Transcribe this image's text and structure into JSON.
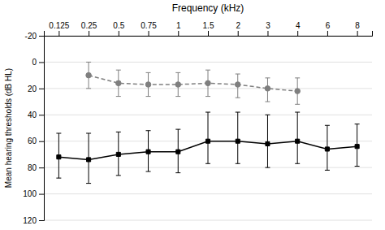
{
  "chart_data": {
    "type": "line",
    "xlabel": "Frequency (kHz)",
    "ylabel": "Mean hearing thresholds (dB HL)",
    "categories": [
      "0.125",
      "0.25",
      "0.5",
      "0.75",
      "1",
      "1.5",
      "2",
      "3",
      "4",
      "6",
      "8"
    ],
    "ylim": [
      120,
      -20
    ],
    "yticks": [
      -20,
      0,
      20,
      40,
      60,
      80,
      100,
      120
    ],
    "grid": true,
    "series": [
      {
        "color": "#000000",
        "marker": "square",
        "line_style": "solid",
        "values": [
          72,
          74,
          70,
          68,
          68,
          60,
          60,
          62,
          60,
          66,
          64
        ],
        "err_upper": [
          16,
          18,
          16,
          15,
          16,
          17,
          17,
          18,
          17,
          16,
          15
        ],
        "err_lower": [
          18,
          20,
          17,
          16,
          17,
          22,
          22,
          22,
          22,
          18,
          17
        ]
      },
      {
        "color": "#7f7f7f",
        "marker": "circle",
        "line_style": "dashed",
        "values": [
          null,
          10,
          16,
          17,
          17,
          16,
          17,
          20,
          22,
          null,
          null
        ],
        "err_upper": [
          null,
          10,
          10,
          9,
          9,
          10,
          10,
          10,
          10,
          null,
          null
        ],
        "err_lower": [
          null,
          10,
          10,
          9,
          9,
          10,
          8,
          8,
          10,
          null,
          null
        ]
      }
    ]
  }
}
